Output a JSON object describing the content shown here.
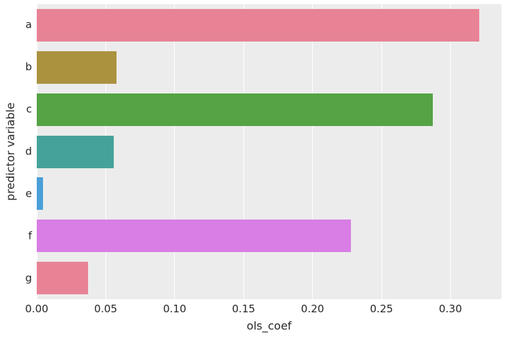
{
  "chart_data": {
    "type": "bar",
    "orientation": "horizontal",
    "title": "",
    "xlabel": "ols_coef",
    "ylabel": "predictor variable",
    "categories": [
      "a",
      "b",
      "c",
      "d",
      "e",
      "f",
      "g"
    ],
    "values": [
      0.321,
      0.058,
      0.287,
      0.056,
      0.0045,
      0.228,
      0.037
    ],
    "bar_colors": [
      "#e88396",
      "#ab923f",
      "#55a344",
      "#45a29b",
      "#4a9fd8",
      "#d97ee4",
      "#e88396"
    ],
    "xlim": [
      0,
      0.337
    ],
    "xticks": [
      0.0,
      0.05,
      0.1,
      0.15,
      0.2,
      0.25,
      0.3
    ],
    "xtick_labels": [
      "0.00",
      "0.05",
      "0.10",
      "0.15",
      "0.20",
      "0.25",
      "0.30"
    ],
    "grid": "vertical-white-gridlines",
    "legend": "none",
    "plot_background": "#ececec",
    "figure_background": "#ffffff",
    "text_color": "#262626"
  }
}
